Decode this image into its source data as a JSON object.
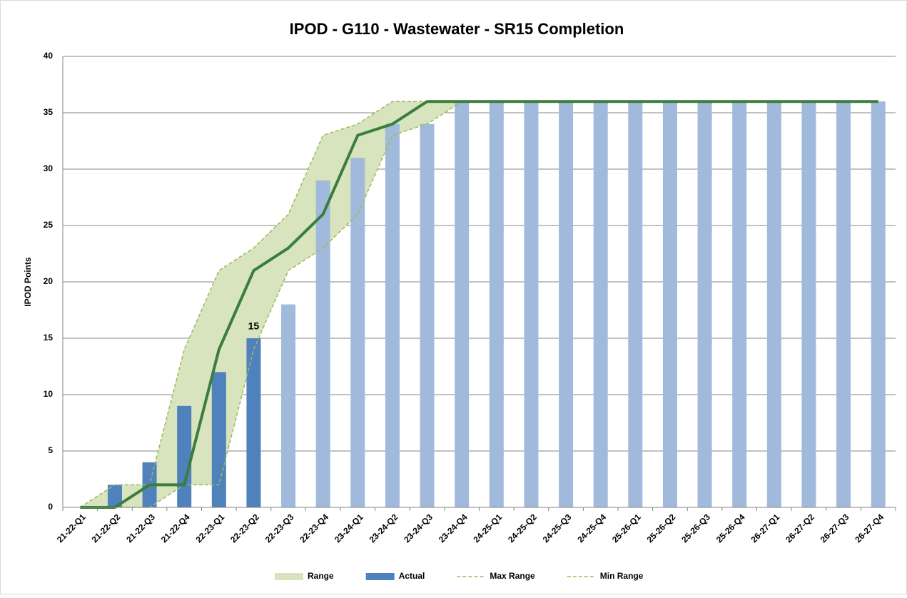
{
  "chart_data": {
    "type": "bar",
    "title": "IPOD - G110 - Wastewater - SR15 Completion",
    "y_label": "IPOD Points",
    "categories": [
      "21-22-Q1",
      "21-22-Q2",
      "21-22-Q3",
      "21-22-Q4",
      "22-23-Q1",
      "22-23-Q2",
      "22-23-Q3",
      "22-23-Q4",
      "23-24-Q1",
      "23-24-Q2",
      "23-24-Q3",
      "23-24-Q4",
      "24-25-Q1",
      "24-25-Q2",
      "24-25-Q3",
      "24-25-Q4",
      "25-26-Q1",
      "25-26-Q2",
      "25-26-Q3",
      "25-26-Q4",
      "26-27-Q1",
      "26-27-Q2",
      "26-27-Q3",
      "26-27-Q4"
    ],
    "ylim": [
      0,
      40
    ],
    "yticks": [
      0,
      5,
      10,
      15,
      20,
      25,
      30,
      35,
      40
    ],
    "grid": true,
    "legend": "bottom",
    "series": [
      {
        "name": "Range",
        "type": "area",
        "color": "#d7e4bd",
        "stack_on": 3,
        "values": [
          0,
          2,
          2,
          12,
          19,
          9,
          5,
          10,
          8,
          3,
          2,
          0,
          0,
          0,
          0,
          0,
          0,
          0,
          0,
          0,
          0,
          0,
          0,
          0
        ]
      },
      {
        "name": "Actual",
        "type": "bar",
        "color": "#4f81bd",
        "values": [
          0,
          2,
          4,
          9,
          12,
          15,
          null,
          null,
          null,
          null,
          null,
          null,
          null,
          null,
          null,
          null,
          null,
          null,
          null,
          null,
          null,
          null,
          null,
          null
        ],
        "value_labels": [
          null,
          null,
          null,
          null,
          null,
          "15",
          null,
          null,
          null,
          null,
          null,
          null,
          null,
          null,
          null,
          null,
          null,
          null,
          null,
          null,
          null,
          null,
          null,
          null
        ]
      },
      {
        "name": "Max Range",
        "type": "dashed-line",
        "color": "#9bbb59",
        "values": [
          0,
          2,
          2,
          14,
          21,
          23,
          26,
          33,
          34,
          36,
          36,
          36,
          36,
          36,
          36,
          36,
          36,
          36,
          36,
          36,
          36,
          36,
          36,
          36
        ]
      },
      {
        "name": "Min Range",
        "type": "dashed-line",
        "color": "#9bbb59",
        "values": [
          0,
          0,
          0,
          2,
          2,
          14,
          21,
          23,
          26,
          33,
          34,
          36,
          36,
          36,
          36,
          36,
          36,
          36,
          36,
          36,
          36,
          36,
          36,
          36
        ]
      },
      {
        "type": "bar",
        "color": "#a1badc",
        "values": [
          null,
          null,
          null,
          null,
          null,
          null,
          18,
          29,
          31,
          34,
          34,
          36,
          36,
          36,
          36,
          36,
          36,
          36,
          36,
          36,
          36,
          36,
          36,
          36
        ]
      },
      {
        "type": "line",
        "color": "#3b7d3b",
        "values": [
          0,
          0,
          2,
          2,
          14,
          21,
          23,
          26,
          33,
          34,
          36,
          36,
          36,
          36,
          36,
          36,
          36,
          36,
          36,
          36,
          36,
          36,
          36,
          36
        ]
      }
    ]
  }
}
